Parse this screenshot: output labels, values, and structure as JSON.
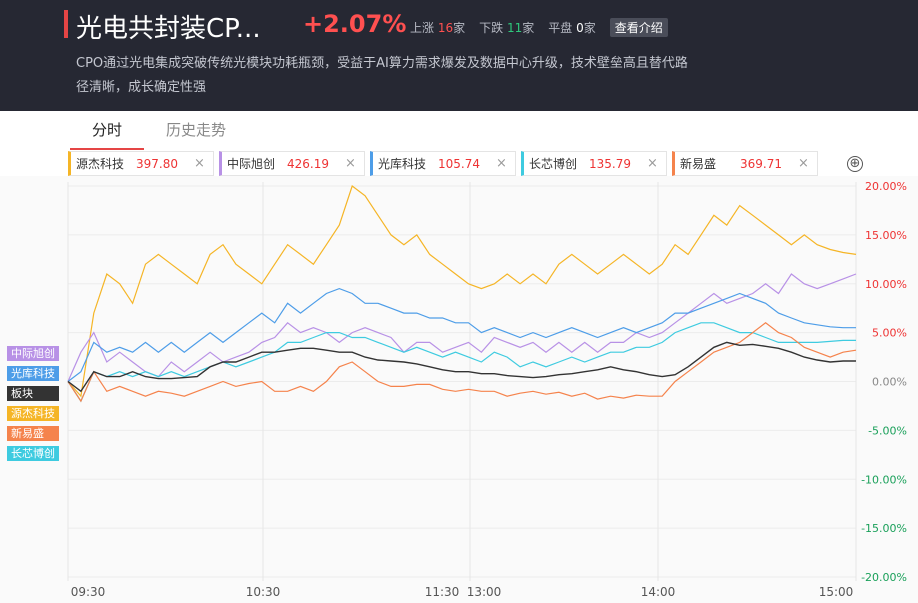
{
  "header": {
    "title": "光电共封装CP...",
    "change_pct": "+2.07%",
    "up_label": "上涨",
    "up_count": "16",
    "up_unit": "家",
    "down_label": "下跌",
    "down_count": "11",
    "down_unit": "家",
    "flat_label": "平盘",
    "flat_count": "0",
    "flat_unit": "家",
    "intro_button": "查看介绍",
    "description": "CPO通过光电集成突破传统光模块功耗瓶颈，受益于AI算力需求爆发及数据中心升级，技术壁垒高且替代路径清晰，成长确定性强"
  },
  "tabs": [
    {
      "label": "分时",
      "active": true
    },
    {
      "label": "历史走势",
      "active": false
    }
  ],
  "stocks": [
    {
      "name": "源杰科技",
      "price": "397.80",
      "color": "#f5b526",
      "close": "×"
    },
    {
      "name": "中际旭创",
      "price": "426.19",
      "color": "#b891e6",
      "close": "×"
    },
    {
      "name": "光库科技",
      "price": "105.74",
      "color": "#4d9de8",
      "close": "×"
    },
    {
      "name": "长芯博创",
      "price": "135.79",
      "color": "#3ecbe0",
      "close": "×"
    },
    {
      "name": "新易盛",
      "price": "369.71",
      "color": "#f5834c",
      "close": "×"
    }
  ],
  "add_icon": "⊕",
  "legend": [
    {
      "label": "中际旭创",
      "color": "#b891e6"
    },
    {
      "label": "光库科技",
      "color": "#4d9de8"
    },
    {
      "label": "板块",
      "color": "#333333"
    },
    {
      "label": "源杰科技",
      "color": "#f5b526"
    },
    {
      "label": "新易盛",
      "color": "#f5834c"
    },
    {
      "label": "长芯博创",
      "color": "#3ecbe0"
    }
  ],
  "chart_data": {
    "type": "line",
    "x_ticks": [
      "09:30",
      "10:30",
      "11:30",
      "13:00",
      "14:00",
      "15:00"
    ],
    "y_ticks": [
      "20.00%",
      "15.00%",
      "10.00%",
      "5.00%",
      "0.00%",
      "-5.00%",
      "-10.00%",
      "-15.00%",
      "-20.00%"
    ],
    "ylim": [
      -20,
      20
    ],
    "series": [
      {
        "name": "源杰科技",
        "color": "#f5b526",
        "values": [
          0,
          -1.5,
          7,
          11,
          10,
          8,
          12,
          13,
          12,
          11,
          10,
          13,
          14,
          12,
          11,
          10,
          12,
          14,
          13,
          12,
          14,
          16,
          20,
          19,
          17,
          15,
          14,
          15,
          13,
          12,
          11,
          10,
          9.5,
          10,
          11,
          10,
          11,
          10,
          12,
          13,
          12,
          11,
          12,
          13,
          12,
          11,
          12,
          14,
          13,
          15,
          17,
          16,
          18,
          17,
          16,
          15,
          14,
          15,
          14,
          13.5,
          13.2,
          13.0
        ]
      },
      {
        "name": "中际旭创",
        "color": "#b891e6",
        "values": [
          0,
          3,
          5,
          2,
          3,
          2,
          1,
          0.5,
          2,
          1,
          2,
          3,
          2,
          2.5,
          3,
          4,
          4.5,
          6,
          5,
          5.5,
          5,
          4,
          5,
          5.5,
          5,
          4.5,
          3,
          4,
          4,
          3,
          3.5,
          4,
          3,
          4.5,
          4,
          3.5,
          4,
          3,
          4,
          3,
          4,
          3,
          4,
          4,
          5,
          4.5,
          5,
          6,
          7,
          8,
          9,
          8,
          8.5,
          9,
          10,
          9,
          11,
          10,
          9.5,
          10,
          10.5,
          11
        ]
      },
      {
        "name": "光库科技",
        "color": "#4d9de8",
        "values": [
          0,
          1,
          4,
          3,
          3.5,
          3,
          4,
          3,
          4,
          3,
          4,
          5,
          4,
          5,
          6,
          7,
          6,
          8,
          7,
          8,
          9,
          9.5,
          9,
          8,
          8,
          7.5,
          7,
          7,
          6.5,
          6.5,
          6,
          6,
          5,
          5.5,
          5,
          4.5,
          5,
          4.5,
          5,
          5.5,
          5,
          4.5,
          5,
          5.5,
          5,
          5.5,
          6,
          7,
          7,
          7.5,
          8,
          8.5,
          9,
          8.5,
          8,
          7,
          6.5,
          6,
          5.8,
          5.6,
          5.5,
          5.5
        ]
      },
      {
        "name": "长芯博创",
        "color": "#3ecbe0",
        "values": [
          0,
          -2,
          1,
          0.5,
          1,
          0.5,
          1,
          0.5,
          1,
          0.5,
          1,
          1.5,
          2,
          1.5,
          2,
          2.5,
          3,
          4,
          4,
          4.5,
          5,
          5,
          4.5,
          4.5,
          4,
          3.5,
          3,
          3.5,
          3,
          2.5,
          3,
          2.5,
          2,
          3,
          2.5,
          1.5,
          2,
          1.5,
          2,
          2.5,
          2,
          2.5,
          3,
          3,
          3.5,
          3.5,
          4,
          5,
          5.5,
          6,
          6,
          5.5,
          5,
          5,
          4.5,
          4,
          4,
          4,
          4,
          4.1,
          4.2,
          4.2
        ]
      },
      {
        "name": "新易盛",
        "color": "#f5834c",
        "values": [
          0,
          -2,
          1,
          -1,
          -0.5,
          -1,
          -1.5,
          -1,
          -1.2,
          -1.5,
          -1,
          -0.5,
          0,
          -0.5,
          -0.2,
          0,
          -1,
          -1,
          -0.5,
          -1,
          0,
          1.5,
          2,
          1,
          0,
          -0.5,
          -0.5,
          -0.3,
          -0.3,
          -0.8,
          -1,
          -0.8,
          -1,
          -1,
          -1.5,
          -1.2,
          -1,
          -1.3,
          -1.1,
          -1.5,
          -1.2,
          -1.8,
          -1.5,
          -1.7,
          -1.4,
          -1.5,
          -1.5,
          0,
          1,
          2,
          3,
          3.5,
          4,
          5,
          6,
          5,
          4.5,
          3.5,
          3,
          2.5,
          3,
          3.2
        ]
      },
      {
        "name": "板块",
        "color": "#333333",
        "values": [
          0,
          -1,
          1,
          0.5,
          0.5,
          1,
          0.5,
          0.3,
          0.3,
          0.4,
          0.5,
          1.5,
          2,
          2,
          2.5,
          3,
          3,
          3.2,
          3.4,
          3.4,
          3.2,
          3,
          3,
          2.5,
          2.2,
          2.1,
          2,
          1.8,
          1.5,
          1.2,
          1,
          1,
          0.8,
          0.8,
          0.6,
          0.5,
          0.4,
          0.5,
          0.7,
          0.8,
          1,
          1.2,
          1.5,
          1.2,
          1,
          0.7,
          0.5,
          0.7,
          1.5,
          2.5,
          3.5,
          4,
          3.7,
          3.8,
          3.6,
          3.4,
          3,
          2.5,
          2.2,
          2,
          2.1,
          2.1
        ]
      }
    ]
  }
}
